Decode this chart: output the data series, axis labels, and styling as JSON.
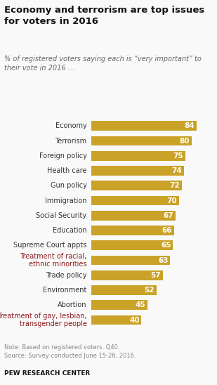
{
  "title": "Economy and terrorism are top issues\nfor voters in 2016",
  "subtitle": "% of registered voters saying each is “very important” to\ntheir vote in 2016 …",
  "categories": [
    "Economy",
    "Terrorism",
    "Foreign policy",
    "Health care",
    "Gun policy",
    "Immigration",
    "Social Security",
    "Education",
    "Supreme Court appts",
    "Treatment of racial,\nethnic minorities",
    "Trade policy",
    "Environment",
    "Abortion",
    "Treatment of gay, lesbian,\ntransgender people"
  ],
  "values": [
    84,
    80,
    75,
    74,
    72,
    70,
    67,
    66,
    65,
    63,
    57,
    52,
    45,
    40
  ],
  "bar_color": "#C9A227",
  "label_color_default": "#333333",
  "label_color_highlight": "#8B1A1A",
  "highlight_categories": [
    "Treatment of racial,\nethnic minorities",
    "Treatment of gay, lesbian,\ntransgender people"
  ],
  "note": "Note: Based on registered voters. Q40.\nSource: Survey conducted June 15-26, 2016.",
  "source": "PEW RESEARCH CENTER",
  "xlim": [
    0,
    95
  ],
  "background_color": "#f9f9f9"
}
